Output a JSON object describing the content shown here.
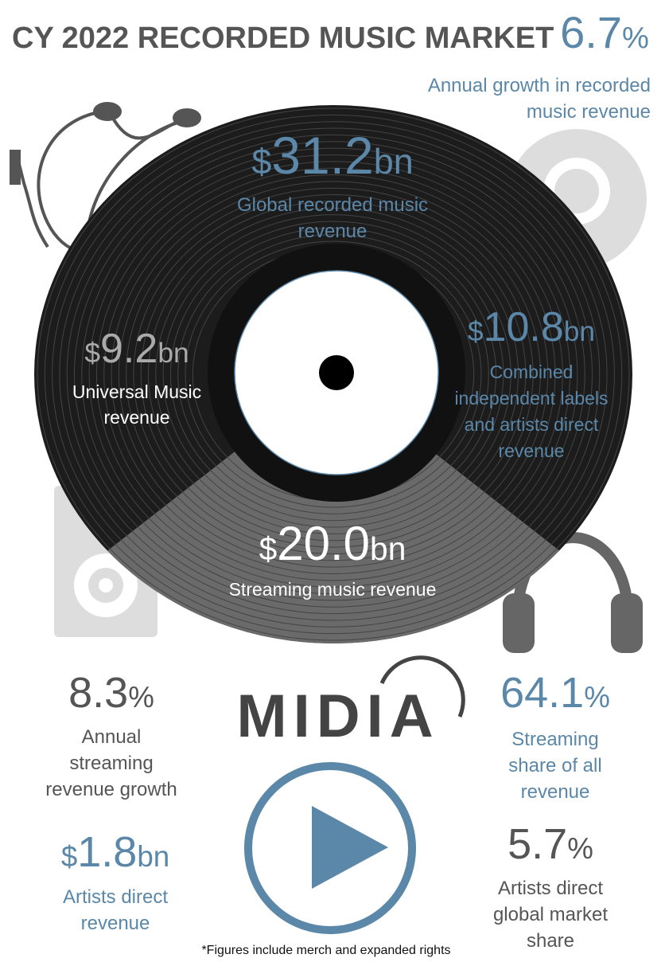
{
  "header": {
    "title": "CY 2022 RECORDED MUSIC MARKET"
  },
  "stats": [
    {
      "value": {
        "number": "6.7",
        "suffix": "%"
      },
      "label": [
        "Annual growth in recorded",
        "music revenue"
      ]
    },
    {
      "value": {
        "prefix": "$",
        "number": "31.2",
        "suffix": "bn"
      },
      "label": [
        "Global recorded music",
        "revenue"
      ]
    },
    {
      "value": {
        "prefix": "$",
        "number": "9.2",
        "suffix": "bn"
      },
      "label": [
        "Universal Music",
        "revenue"
      ]
    },
    {
      "value": {
        "prefix": "$",
        "number": "10.8",
        "suffix": "bn"
      },
      "label": [
        "Combined",
        "independent labels",
        "and artists direct",
        "revenue"
      ]
    },
    {
      "value": {
        "prefix": "$",
        "number": "20.0",
        "suffix": "bn"
      },
      "label": [
        "Streaming music revenue"
      ]
    },
    {
      "value": {
        "number": "8.3",
        "suffix": "%"
      },
      "label": [
        "Annual",
        "streaming",
        "revenue growth"
      ]
    },
    {
      "value": {
        "number": "64.1",
        "suffix": "%"
      },
      "label": [
        "Streaming",
        "share of all",
        "revenue"
      ]
    },
    {
      "value": {
        "prefix": "$",
        "number": "1.8",
        "suffix": "bn"
      },
      "label": [
        "Artists direct",
        "revenue"
      ]
    },
    {
      "value": {
        "number": "5.7",
        "suffix": "%"
      },
      "label": [
        "Artists direct",
        "global market",
        "share"
      ]
    }
  ],
  "logo": "MIDIA",
  "footnote": "*Figures include merch and expanded rights"
}
